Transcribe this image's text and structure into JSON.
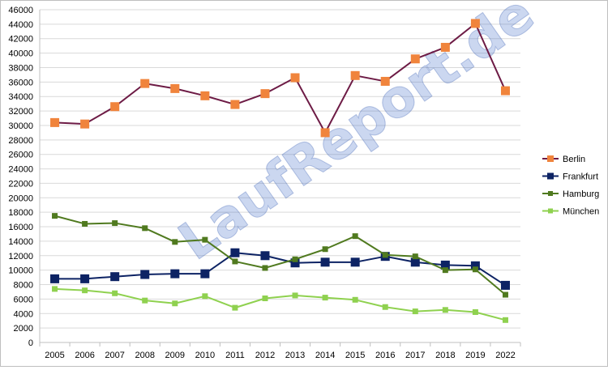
{
  "watermark": "LaufReport.de",
  "chart_data": {
    "type": "line",
    "title": "",
    "xlabel": "",
    "ylabel": "",
    "categories": [
      "2005",
      "2006",
      "2007",
      "2008",
      "2009",
      "2010",
      "2011",
      "2012",
      "2013",
      "2014",
      "2015",
      "2016",
      "2017",
      "2018",
      "2019",
      "2022"
    ],
    "ylim": [
      0,
      46000
    ],
    "ytick_step": 2000,
    "grid": true,
    "legend_position": "right",
    "series": [
      {
        "name": "Berlin",
        "line_color": "#6d1b45",
        "marker_color": "#f0843c",
        "marker": "square-large",
        "values": [
          30400,
          30200,
          32600,
          35800,
          35100,
          34100,
          32900,
          34400,
          36600,
          29000,
          36900,
          36100,
          39200,
          40800,
          44100,
          34800
        ]
      },
      {
        "name": "Frankfurt",
        "line_color": "#0d2364",
        "marker_color": "#0d2364",
        "marker": "square-large",
        "values": [
          8800,
          8800,
          9100,
          9400,
          9500,
          9500,
          12400,
          12000,
          11000,
          11100,
          11100,
          11900,
          11100,
          10700,
          10600,
          7900
        ]
      },
      {
        "name": "Hamburg",
        "line_color": "#507a1f",
        "marker_color": "#507a1f",
        "marker": "square-small",
        "values": [
          17500,
          16400,
          16500,
          15800,
          13900,
          14200,
          11200,
          10300,
          11500,
          12900,
          14700,
          12100,
          11900,
          10000,
          10100,
          6600
        ]
      },
      {
        "name": "München",
        "line_color": "#8fd14f",
        "marker_color": "#8fd14f",
        "marker": "square-small",
        "values": [
          7400,
          7200,
          6800,
          5800,
          5400,
          6400,
          4800,
          6100,
          6500,
          6200,
          5900,
          4900,
          4300,
          4500,
          4200,
          3100
        ]
      }
    ]
  }
}
